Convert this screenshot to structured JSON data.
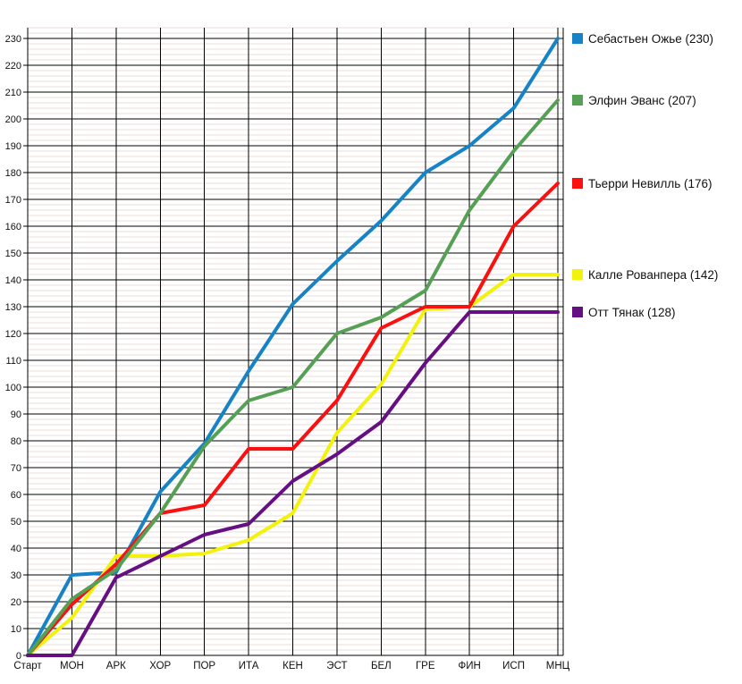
{
  "chart_data": {
    "type": "line",
    "title": "",
    "xlabel": "",
    "ylabel": "",
    "categories": [
      "Старт",
      "МОН",
      "АРК",
      "ХОР",
      "ПОР",
      "ИТА",
      "КЕН",
      "ЭСТ",
      "БЕЛ",
      "ГРЕ",
      "ФИН",
      "ИСП",
      "МНЦ"
    ],
    "series": [
      {
        "name": "Себастьен Ожье",
        "total": 230,
        "legend_label": "Себастьен Ожье (230)",
        "color": "#1583c5",
        "values": [
          0,
          30,
          31,
          61,
          79,
          106,
          131,
          147,
          162,
          180,
          190,
          204,
          230
        ]
      },
      {
        "name": "Элфин Эванс",
        "total": 207,
        "legend_label": "Элфин Эванс (207)",
        "color": "#55a055",
        "values": [
          0,
          21,
          32,
          53,
          78,
          95,
          100,
          120,
          126,
          136,
          166,
          188,
          207
        ]
      },
      {
        "name": "Тьерри Невилль",
        "total": 176,
        "legend_label": "Тьерри Невилль (176)",
        "color": "#fb1010",
        "values": [
          0,
          19,
          34,
          53,
          56,
          77,
          77,
          95,
          122,
          130,
          130,
          160,
          176
        ]
      },
      {
        "name": "Калле Рованпера",
        "total": 142,
        "legend_label": "Калле Рованпера (142)",
        "color": "#f2f20c",
        "values": [
          0,
          14,
          37,
          37,
          38,
          43,
          53,
          83,
          101,
          129,
          130,
          142,
          142
        ]
      },
      {
        "name": "Отт Тянак",
        "total": 128,
        "legend_label": "Отт Тянак (128)",
        "color": "#650f82",
        "values": [
          0,
          0,
          29,
          37,
          45,
          49,
          65,
          75,
          87,
          109,
          128,
          128,
          128
        ]
      }
    ],
    "y_axis": {
      "min": 0,
      "max": 230,
      "tick_step": 10,
      "minor_step": 2,
      "tick_labels": [
        "0",
        "10",
        "20",
        "30",
        "40",
        "50",
        "60",
        "70",
        "80",
        "90",
        "100",
        "110",
        "120",
        "130",
        "140",
        "150",
        "160",
        "170",
        "180",
        "190",
        "200",
        "210",
        "220",
        "230"
      ]
    },
    "legend_position": "right",
    "grid": true,
    "colors": {
      "major_grid": "#000000",
      "minor_grid": "#e8dfda",
      "background": "#ffffff",
      "text": "#111111"
    }
  }
}
